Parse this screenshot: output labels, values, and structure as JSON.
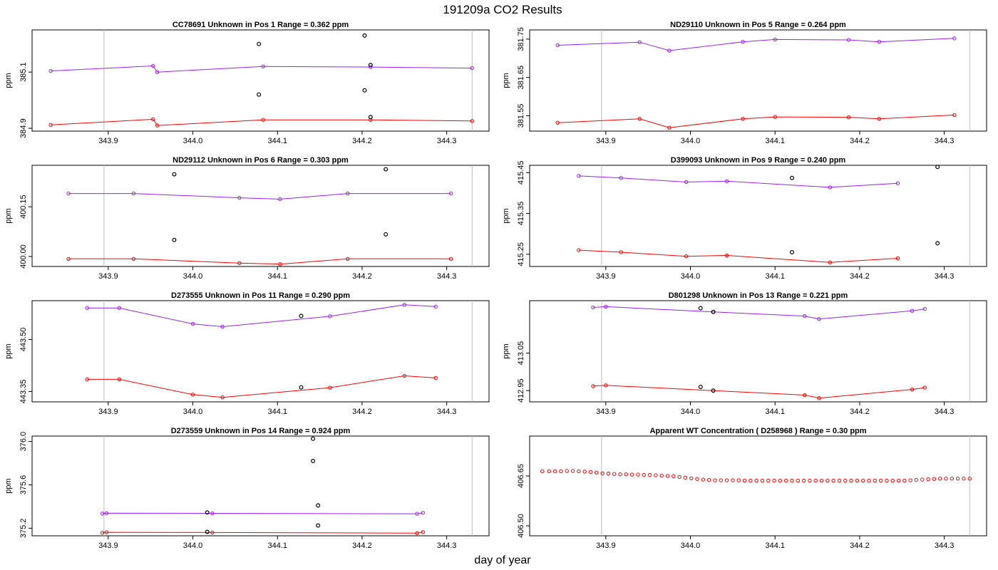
{
  "title": "191209a  CO2 Results",
  "xlabel": "day of year",
  "colors": {
    "upper_series": "#a020f0",
    "lower_series": "#ff0000",
    "flagged": "#000000",
    "guide": "#bebebe",
    "box": "#000000"
  },
  "chart_data": [
    {
      "type": "scatter",
      "id": "CC78691",
      "title": "CC78691    Unknown in Pos 1         Range =  0.362 ppm",
      "ylabel": "ppm",
      "xlim": [
        343.81,
        344.35
      ],
      "ylim": [
        384.89,
        385.25
      ],
      "xticks": [
        "343.9",
        "344.0",
        "344.1",
        "344.2",
        "344.3"
      ],
      "yticks": [
        "384.9",
        "385.1"
      ],
      "guides": [
        343.895,
        344.33
      ],
      "series": [
        {
          "color": "#a020f0",
          "x": [
            343.832,
            343.953,
            343.958,
            344.083,
            344.21,
            344.33
          ],
          "y": [
            385.104,
            385.122,
            385.1,
            385.12,
            385.118,
            385.114
          ]
        },
        {
          "color": "#ff0000",
          "x": [
            343.832,
            343.953,
            343.958,
            344.083,
            344.21,
            344.33
          ],
          "y": [
            384.912,
            384.932,
            384.91,
            384.93,
            384.93,
            384.926
          ]
        }
      ],
      "flagged": [
        {
          "x": 344.078,
          "y": 385.2
        },
        {
          "x": 344.203,
          "y": 385.23
        },
        {
          "x": 344.21,
          "y": 385.125
        },
        {
          "x": 344.078,
          "y": 385.02
        },
        {
          "x": 344.203,
          "y": 385.035
        },
        {
          "x": 344.21,
          "y": 384.94
        }
      ]
    },
    {
      "type": "scatter",
      "id": "ND29110",
      "title": "ND29110    Unknown in Pos 5         Range =  0.264 ppm",
      "ylabel": "ppm",
      "xlim": [
        343.81,
        344.35
      ],
      "ylim": [
        381.51,
        381.774
      ],
      "xticks": [
        "343.9",
        "344.0",
        "344.1",
        "344.2",
        "344.3"
      ],
      "yticks": [
        "381.55",
        "381.65",
        "381.75"
      ],
      "guides": [
        343.895,
        344.33
      ],
      "series": [
        {
          "color": "#a020f0",
          "x": [
            343.843,
            343.94,
            343.975,
            344.062,
            344.1,
            344.187,
            344.223,
            344.312
          ],
          "y": [
            381.734,
            381.742,
            381.72,
            381.743,
            381.749,
            381.748,
            381.743,
            381.752
          ]
        },
        {
          "color": "#ff0000",
          "x": [
            343.843,
            343.94,
            343.975,
            344.062,
            344.1,
            344.187,
            344.223,
            344.312
          ],
          "y": [
            381.532,
            381.542,
            381.519,
            381.542,
            381.547,
            381.546,
            381.542,
            381.552
          ]
        }
      ],
      "flagged": []
    },
    {
      "type": "scatter",
      "id": "ND29112",
      "title": "ND29112    Unknown in Pos 6         Range =  0.303 ppm",
      "ylabel": "ppm",
      "xlim": [
        343.81,
        344.35
      ],
      "ylim": [
        399.97,
        400.275
      ],
      "xticks": [
        "343.9",
        "344.0",
        "344.1",
        "344.2",
        "344.3"
      ],
      "yticks": [
        "400.00",
        "400.15"
      ],
      "guides": [
        343.895,
        344.33
      ],
      "series": [
        {
          "color": "#a020f0",
          "x": [
            343.853,
            343.93,
            344.055,
            344.103,
            344.183,
            344.305
          ],
          "y": [
            400.19,
            400.19,
            400.177,
            400.173,
            400.19,
            400.19
          ]
        },
        {
          "color": "#ff0000",
          "x": [
            343.853,
            343.93,
            344.055,
            344.103,
            344.183,
            344.305
          ],
          "y": [
            399.993,
            399.993,
            399.98,
            399.977,
            399.993,
            399.993
          ]
        }
      ],
      "flagged": [
        {
          "x": 343.978,
          "y": 400.248
        },
        {
          "x": 344.228,
          "y": 400.263
        },
        {
          "x": 343.978,
          "y": 400.05
        },
        {
          "x": 344.228,
          "y": 400.067
        }
      ]
    },
    {
      "type": "scatter",
      "id": "D399093",
      "title": "D399093    Unknown in Pos 9         Range =  0.240 ppm",
      "ylabel": "ppm",
      "xlim": [
        343.81,
        344.35
      ],
      "ylim": [
        415.22,
        415.468
      ],
      "xticks": [
        "343.9",
        "344.0",
        "344.1",
        "344.2",
        "344.3"
      ],
      "yticks": [
        "415.25",
        "415.35",
        "415.45"
      ],
      "guides": [
        343.895,
        344.33
      ],
      "series": [
        {
          "color": "#a020f0",
          "x": [
            343.868,
            343.918,
            343.995,
            344.043,
            344.165,
            344.245
          ],
          "y": [
            415.442,
            415.437,
            415.427,
            415.429,
            415.414,
            415.424
          ]
        },
        {
          "color": "#ff0000",
          "x": [
            343.868,
            343.918,
            343.995,
            344.043,
            344.165,
            344.245
          ],
          "y": [
            415.26,
            415.255,
            415.245,
            415.247,
            415.23,
            415.24
          ]
        }
      ],
      "flagged": [
        {
          "x": 344.12,
          "y": 415.437
        },
        {
          "x": 344.292,
          "y": 415.464
        },
        {
          "x": 344.12,
          "y": 415.255
        },
        {
          "x": 344.292,
          "y": 415.277
        }
      ]
    },
    {
      "type": "scatter",
      "id": "D273555",
      "title": "D273555    Unknown in Pos 11         Range =  0.290 ppm",
      "ylabel": "ppm",
      "xlim": [
        343.81,
        344.35
      ],
      "ylim": [
        443.32,
        443.612
      ],
      "xticks": [
        "343.9",
        "344.0",
        "344.1",
        "344.2",
        "344.3"
      ],
      "yticks": [
        "443.35",
        "443.50"
      ],
      "guides": [
        343.895,
        344.33
      ],
      "series": [
        {
          "color": "#a020f0",
          "x": [
            343.875,
            343.913,
            344.0,
            344.035,
            344.162,
            344.25,
            344.287
          ],
          "y": [
            443.591,
            443.591,
            443.545,
            443.537,
            443.567,
            443.6,
            443.595
          ]
        },
        {
          "color": "#ff0000",
          "x": [
            343.875,
            343.913,
            344.0,
            344.035,
            344.162,
            344.25,
            344.287
          ],
          "y": [
            443.385,
            443.385,
            443.341,
            443.333,
            443.361,
            443.395,
            443.389
          ]
        }
      ],
      "flagged": [
        {
          "x": 344.128,
          "y": 443.568
        },
        {
          "x": 344.128,
          "y": 443.362
        }
      ]
    },
    {
      "type": "scatter",
      "id": "D801298",
      "title": "D801298    Unknown in Pos 13         Range =  0.221 ppm",
      "ylabel": "ppm",
      "xlim": [
        343.81,
        344.35
      ],
      "ylim": [
        412.92,
        413.19
      ],
      "xticks": [
        "343.9",
        "344.0",
        "344.1",
        "344.2",
        "344.3"
      ],
      "yticks": [
        "412.95",
        "413.05"
      ],
      "guides": [
        343.895,
        344.33
      ],
      "series": [
        {
          "color": "#a020f0",
          "x": [
            343.885,
            343.9,
            344.027,
            344.135,
            344.152,
            344.262,
            344.277
          ],
          "y": [
            413.172,
            413.174,
            413.16,
            413.149,
            413.141,
            413.163,
            413.168
          ]
        },
        {
          "color": "#ff0000",
          "x": [
            343.885,
            343.9,
            344.027,
            344.135,
            344.152,
            344.262,
            344.277
          ],
          "y": [
            412.962,
            412.964,
            412.95,
            412.938,
            412.93,
            412.953,
            412.958
          ]
        }
      ],
      "flagged": [
        {
          "x": 344.012,
          "y": 413.17
        },
        {
          "x": 344.027,
          "y": 413.16
        },
        {
          "x": 344.012,
          "y": 412.96
        },
        {
          "x": 344.027,
          "y": 412.95
        }
      ]
    },
    {
      "type": "scatter",
      "id": "D273559",
      "title": "D273559    Unknown in Pos 14         Range =  0.924 ppm",
      "ylabel": "ppm",
      "xlim": [
        343.81,
        344.35
      ],
      "ylim": [
        375.13,
        376.05
      ],
      "xticks": [
        "343.9",
        "344.0",
        "344.1",
        "344.2",
        "344.3"
      ],
      "yticks": [
        "375.2",
        "375.6",
        "376.0"
      ],
      "guides": [
        343.895,
        344.33
      ],
      "series": [
        {
          "color": "#a020f0",
          "x": [
            343.893,
            343.898,
            344.023,
            344.265,
            344.272
          ],
          "y": [
            375.335,
            375.339,
            375.337,
            375.333,
            375.342
          ]
        },
        {
          "color": "#ff0000",
          "x": [
            343.893,
            343.898,
            344.023,
            344.265,
            344.272
          ],
          "y": [
            375.158,
            375.162,
            375.16,
            375.154,
            375.164
          ]
        }
      ],
      "flagged": [
        {
          "x": 344.017,
          "y": 375.345
        },
        {
          "x": 344.142,
          "y": 376.025
        },
        {
          "x": 344.148,
          "y": 375.41
        },
        {
          "x": 344.017,
          "y": 375.166
        },
        {
          "x": 344.142,
          "y": 375.82
        },
        {
          "x": 344.148,
          "y": 375.225
        }
      ]
    },
    {
      "type": "scatter",
      "id": "D258968",
      "title": "Apparent WT Concentration ( D258968 )         Range = 0.30 ppm",
      "ylabel": "",
      "xlim": [
        343.81,
        344.35
      ],
      "ylim": [
        406.47,
        406.77
      ],
      "xticks": [
        "343.9",
        "344.0",
        "344.1",
        "344.2",
        "344.3"
      ],
      "yticks": [
        "406.50",
        "406.65"
      ],
      "guides": [
        343.895,
        344.33
      ],
      "wt_points": {
        "color": "#ff0000",
        "x": [
          343.825,
          343.833,
          343.84,
          343.847,
          343.854,
          343.861,
          343.868,
          343.875,
          343.882,
          343.889,
          343.896,
          343.903,
          343.91,
          343.917,
          343.924,
          343.931,
          343.938,
          343.945,
          343.952,
          343.959,
          343.966,
          343.973,
          343.98,
          343.987,
          343.994,
          344.001,
          344.008,
          344.015,
          344.022,
          344.029,
          344.036,
          344.043,
          344.05,
          344.057,
          344.064,
          344.071,
          344.078,
          344.085,
          344.092,
          344.099,
          344.106,
          344.113,
          344.12,
          344.127,
          344.134,
          344.141,
          344.148,
          344.155,
          344.162,
          344.169,
          344.176,
          344.183,
          344.19,
          344.197,
          344.204,
          344.211,
          344.218,
          344.225,
          344.232,
          344.239,
          344.246,
          344.253,
          344.26,
          344.267,
          344.274,
          344.281,
          344.288,
          344.295,
          344.302,
          344.309,
          344.316,
          344.323,
          344.33
        ],
        "y": [
          406.664,
          406.664,
          406.664,
          406.664,
          406.665,
          406.665,
          406.664,
          406.663,
          406.662,
          406.66,
          406.658,
          406.657,
          406.656,
          406.655,
          406.655,
          406.654,
          406.654,
          406.653,
          406.653,
          406.652,
          406.651,
          406.65,
          406.649,
          406.647,
          406.645,
          406.643,
          406.641,
          406.639,
          406.638,
          406.637,
          406.637,
          406.637,
          406.637,
          406.637,
          406.636,
          406.636,
          406.636,
          406.636,
          406.636,
          406.636,
          406.636,
          406.636,
          406.636,
          406.636,
          406.636,
          406.636,
          406.636,
          406.636,
          406.636,
          406.636,
          406.636,
          406.636,
          406.636,
          406.636,
          406.636,
          406.636,
          406.636,
          406.636,
          406.636,
          406.636,
          406.636,
          406.636,
          406.637,
          406.638,
          406.639,
          406.64,
          406.641,
          406.642,
          406.642,
          406.642,
          406.642,
          406.642,
          406.642
        ]
      }
    }
  ]
}
